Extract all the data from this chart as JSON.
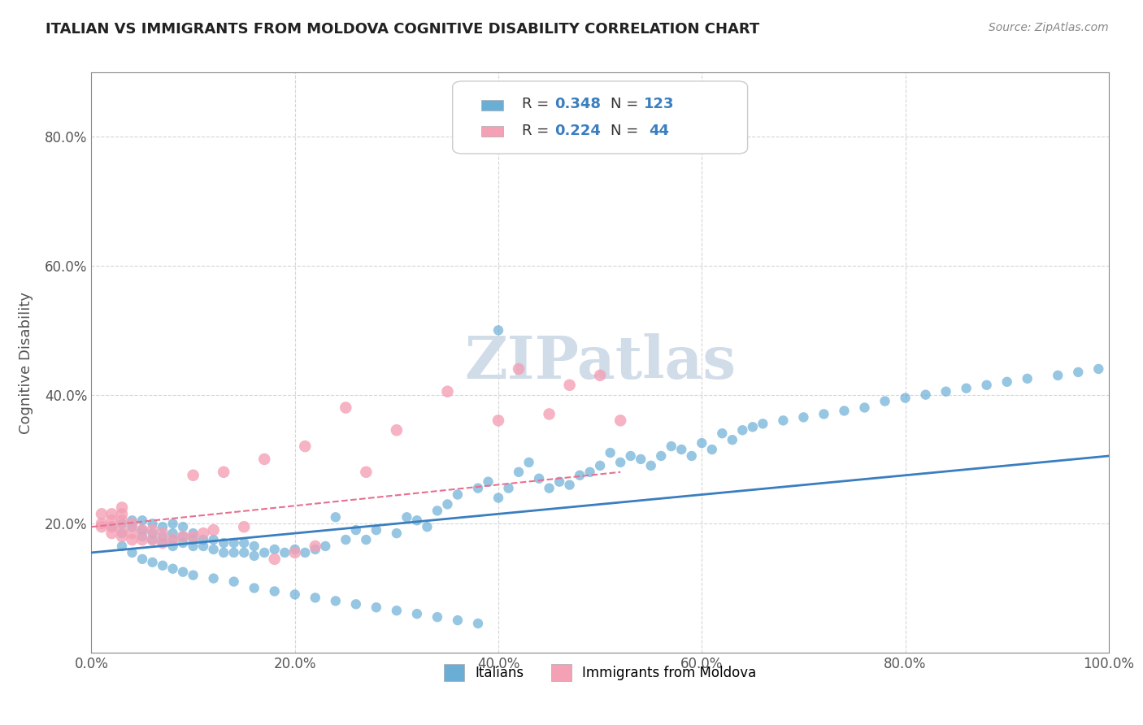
{
  "title": "ITALIAN VS IMMIGRANTS FROM MOLDOVA COGNITIVE DISABILITY CORRELATION CHART",
  "source": "Source: ZipAtlas.com",
  "xlabel_label": "",
  "ylabel_label": "Cognitive Disability",
  "watermark": "ZIPatlas",
  "legend_r1": "R = 0.348",
  "legend_n1": "N = 123",
  "legend_r2": "R = 0.224",
  "legend_n2": "N =  44",
  "legend_label1": "Italians",
  "legend_label2": "Immigrants from Moldova",
  "color_blue": "#6aaed6",
  "color_pink": "#f4a0b5",
  "color_blue_line": "#3a7ebf",
  "color_pink_line": "#e87090",
  "xlim": [
    0.0,
    1.0
  ],
  "ylim": [
    0.0,
    0.9
  ],
  "xticks": [
    0.0,
    0.2,
    0.4,
    0.6,
    0.8,
    1.0
  ],
  "yticks": [
    0.2,
    0.4,
    0.6,
    0.8
  ],
  "xtick_labels": [
    "0.0%",
    "20.0%",
    "40.0%",
    "60.0%",
    "80.0%",
    "100.0%"
  ],
  "ytick_labels": [
    "20.0%",
    "40.0%",
    "60.0%",
    "80.0%"
  ],
  "blue_scatter_x": [
    0.02,
    0.03,
    0.03,
    0.04,
    0.04,
    0.05,
    0.05,
    0.05,
    0.06,
    0.06,
    0.06,
    0.07,
    0.07,
    0.07,
    0.08,
    0.08,
    0.08,
    0.08,
    0.09,
    0.09,
    0.09,
    0.1,
    0.1,
    0.1,
    0.11,
    0.11,
    0.12,
    0.12,
    0.13,
    0.13,
    0.14,
    0.14,
    0.15,
    0.15,
    0.16,
    0.16,
    0.17,
    0.18,
    0.19,
    0.2,
    0.21,
    0.22,
    0.23,
    0.24,
    0.25,
    0.26,
    0.27,
    0.28,
    0.3,
    0.31,
    0.32,
    0.33,
    0.34,
    0.35,
    0.36,
    0.38,
    0.39,
    0.4,
    0.41,
    0.42,
    0.43,
    0.44,
    0.45,
    0.46,
    0.47,
    0.48,
    0.49,
    0.5,
    0.51,
    0.52,
    0.53,
    0.54,
    0.55,
    0.56,
    0.57,
    0.58,
    0.59,
    0.6,
    0.61,
    0.62,
    0.63,
    0.64,
    0.65,
    0.66,
    0.68,
    0.7,
    0.72,
    0.74,
    0.76,
    0.78,
    0.8,
    0.82,
    0.84,
    0.86,
    0.88,
    0.9,
    0.92,
    0.95,
    0.97,
    0.99,
    0.03,
    0.04,
    0.05,
    0.06,
    0.07,
    0.08,
    0.09,
    0.1,
    0.12,
    0.14,
    0.16,
    0.18,
    0.2,
    0.22,
    0.24,
    0.26,
    0.28,
    0.3,
    0.32,
    0.34,
    0.36,
    0.38,
    0.4
  ],
  "blue_scatter_y": [
    0.195,
    0.2,
    0.185,
    0.195,
    0.205,
    0.18,
    0.19,
    0.205,
    0.175,
    0.185,
    0.2,
    0.17,
    0.18,
    0.195,
    0.165,
    0.175,
    0.185,
    0.2,
    0.17,
    0.18,
    0.195,
    0.165,
    0.175,
    0.185,
    0.165,
    0.175,
    0.16,
    0.175,
    0.155,
    0.17,
    0.155,
    0.17,
    0.155,
    0.17,
    0.15,
    0.165,
    0.155,
    0.16,
    0.155,
    0.16,
    0.155,
    0.16,
    0.165,
    0.21,
    0.175,
    0.19,
    0.175,
    0.19,
    0.185,
    0.21,
    0.205,
    0.195,
    0.22,
    0.23,
    0.245,
    0.255,
    0.265,
    0.24,
    0.255,
    0.28,
    0.295,
    0.27,
    0.255,
    0.265,
    0.26,
    0.275,
    0.28,
    0.29,
    0.31,
    0.295,
    0.305,
    0.3,
    0.29,
    0.305,
    0.32,
    0.315,
    0.305,
    0.325,
    0.315,
    0.34,
    0.33,
    0.345,
    0.35,
    0.355,
    0.36,
    0.365,
    0.37,
    0.375,
    0.38,
    0.39,
    0.395,
    0.4,
    0.405,
    0.41,
    0.415,
    0.42,
    0.425,
    0.43,
    0.435,
    0.44,
    0.165,
    0.155,
    0.145,
    0.14,
    0.135,
    0.13,
    0.125,
    0.12,
    0.115,
    0.11,
    0.1,
    0.095,
    0.09,
    0.085,
    0.08,
    0.075,
    0.07,
    0.065,
    0.06,
    0.055,
    0.05,
    0.045,
    0.5
  ],
  "pink_scatter_x": [
    0.01,
    0.01,
    0.01,
    0.02,
    0.02,
    0.02,
    0.02,
    0.03,
    0.03,
    0.03,
    0.03,
    0.03,
    0.04,
    0.04,
    0.04,
    0.05,
    0.05,
    0.06,
    0.06,
    0.07,
    0.07,
    0.08,
    0.09,
    0.1,
    0.1,
    0.11,
    0.12,
    0.13,
    0.15,
    0.17,
    0.18,
    0.2,
    0.21,
    0.22,
    0.25,
    0.27,
    0.3,
    0.35,
    0.4,
    0.42,
    0.45,
    0.47,
    0.5,
    0.52
  ],
  "pink_scatter_y": [
    0.195,
    0.2,
    0.215,
    0.185,
    0.195,
    0.205,
    0.215,
    0.18,
    0.19,
    0.205,
    0.215,
    0.225,
    0.175,
    0.185,
    0.2,
    0.175,
    0.19,
    0.175,
    0.19,
    0.17,
    0.185,
    0.175,
    0.18,
    0.18,
    0.275,
    0.185,
    0.19,
    0.28,
    0.195,
    0.3,
    0.145,
    0.155,
    0.32,
    0.165,
    0.38,
    0.28,
    0.345,
    0.405,
    0.36,
    0.44,
    0.37,
    0.415,
    0.43,
    0.36
  ],
  "blue_trendline_x": [
    0.0,
    1.0
  ],
  "blue_trendline_y": [
    0.155,
    0.305
  ],
  "pink_trendline_x": [
    0.0,
    0.52
  ],
  "pink_trendline_y": [
    0.195,
    0.28
  ],
  "title_color": "#222222",
  "axis_color": "#888888",
  "grid_color": "#cccccc",
  "watermark_color": "#d0dce8",
  "background_color": "#ffffff"
}
